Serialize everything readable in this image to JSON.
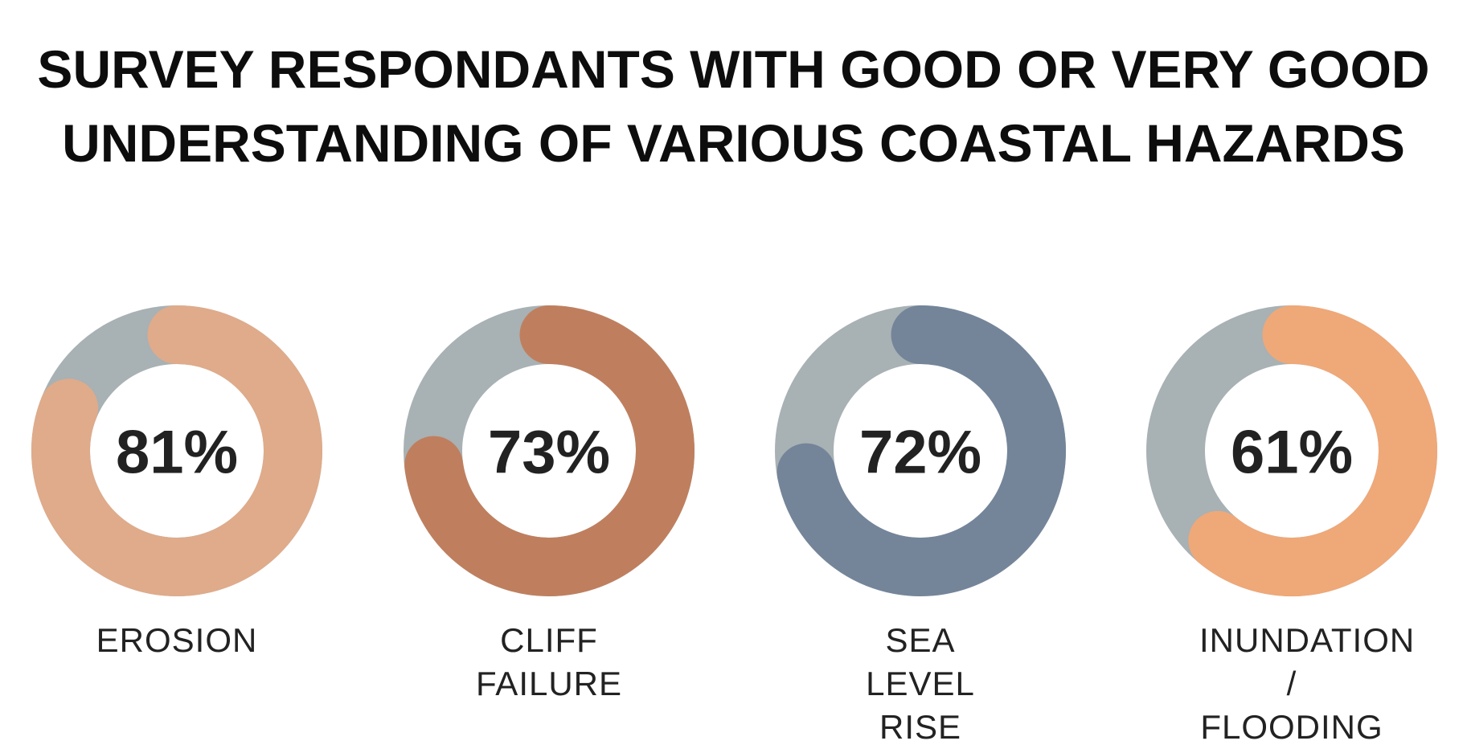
{
  "chart_data": {
    "type": "donut",
    "title": "SURVEY RESPONDANTS WITH GOOD OR VERY GOOD UNDERSTANDING OF VARIOUS COASTAL HAZARDS",
    "categories": [
      "EROSION",
      "CLIFF FAILURE",
      "SEA LEVEL RISE",
      "INUNDATION / FLOODING"
    ],
    "values": [
      81,
      73,
      72,
      61
    ],
    "value_labels": [
      "81%",
      "73%",
      "72%",
      "61%"
    ],
    "colors": [
      "#dfab8a",
      "#bf7f5e",
      "#74859a",
      "#efa878"
    ],
    "track_color": "#a8b1b4"
  }
}
